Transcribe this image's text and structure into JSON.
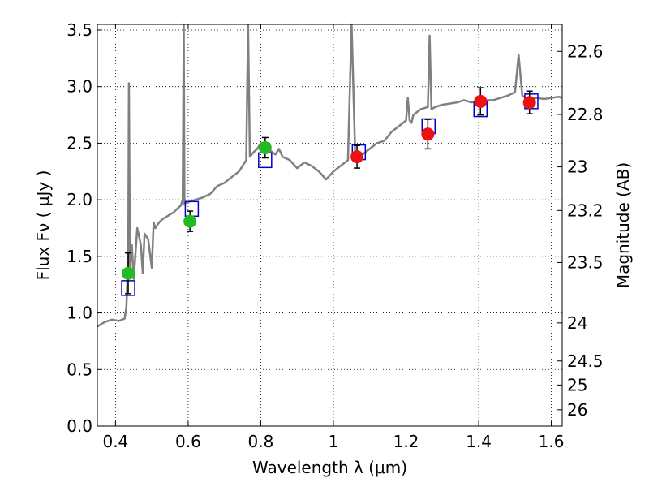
{
  "chart_data": {
    "type": "scatter",
    "xlabel": "Wavelength  λ (μm)",
    "ylabel": "Flux  Fν  ( μJy )",
    "ylabel_right": "Magnitude (AB)",
    "xlim": [
      0.35,
      1.63
    ],
    "ylim": [
      0.0,
      3.55
    ],
    "grid": true,
    "x_ticks": [
      {
        "value": 0.4,
        "label": "0.4"
      },
      {
        "value": 0.6,
        "label": "0.6"
      },
      {
        "value": 0.8,
        "label": "0.8"
      },
      {
        "value": 1.0,
        "label": "1"
      },
      {
        "value": 1.2,
        "label": "1.2"
      },
      {
        "value": 1.4,
        "label": "1.4"
      },
      {
        "value": 1.6,
        "label": "1.6"
      }
    ],
    "y_ticks": [
      {
        "value": 0.0,
        "label": "0.0"
      },
      {
        "value": 0.5,
        "label": "0.5"
      },
      {
        "value": 1.0,
        "label": "1.0"
      },
      {
        "value": 1.5,
        "label": "1.5"
      },
      {
        "value": 2.0,
        "label": "2.0"
      },
      {
        "value": 2.5,
        "label": "2.5"
      },
      {
        "value": 3.0,
        "label": "3.0"
      },
      {
        "value": 3.5,
        "label": "3.5"
      }
    ],
    "right_ticks": [
      {
        "value": 22.6,
        "label": "22.6"
      },
      {
        "value": 22.8,
        "label": "22.8"
      },
      {
        "value": 23.0,
        "label": "23"
      },
      {
        "value": 23.2,
        "label": "23.2"
      },
      {
        "value": 23.5,
        "label": "23.5"
      },
      {
        "value": 24.0,
        "label": "24"
      },
      {
        "value": 24.5,
        "label": "24.5"
      },
      {
        "value": 25.0,
        "label": "25"
      },
      {
        "value": 26.0,
        "label": "26"
      }
    ],
    "colors": {
      "spectrum": "#808080",
      "model": "#0000cc",
      "optical": "#22bb22",
      "nir": "#ee1111",
      "errorbar": "#000000"
    },
    "spectrum": {
      "x": [
        0.35,
        0.37,
        0.39,
        0.41,
        0.425,
        0.43,
        0.435,
        0.437,
        0.44,
        0.445,
        0.45,
        0.46,
        0.47,
        0.475,
        0.48,
        0.49,
        0.5,
        0.505,
        0.51,
        0.52,
        0.53,
        0.54,
        0.55,
        0.56,
        0.57,
        0.58,
        0.585,
        0.588,
        0.59,
        0.595,
        0.6,
        0.62,
        0.64,
        0.66,
        0.68,
        0.7,
        0.72,
        0.74,
        0.76,
        0.765,
        0.77,
        0.78,
        0.79,
        0.8,
        0.82,
        0.84,
        0.85,
        0.86,
        0.88,
        0.9,
        0.92,
        0.94,
        0.96,
        0.98,
        1.0,
        1.02,
        1.04,
        1.05,
        1.06,
        1.07,
        1.08,
        1.1,
        1.12,
        1.14,
        1.16,
        1.18,
        1.2,
        1.205,
        1.21,
        1.215,
        1.22,
        1.24,
        1.26,
        1.265,
        1.27,
        1.28,
        1.3,
        1.32,
        1.34,
        1.36,
        1.38,
        1.4,
        1.42,
        1.44,
        1.46,
        1.48,
        1.5,
        1.51,
        1.52,
        1.54,
        1.56,
        1.58,
        1.6,
        1.62,
        1.63
      ],
      "y": [
        0.88,
        0.92,
        0.94,
        0.93,
        0.95,
        1.05,
        1.5,
        3.03,
        1.4,
        1.6,
        1.3,
        1.75,
        1.6,
        1.35,
        1.7,
        1.65,
        1.4,
        1.8,
        1.75,
        1.8,
        1.83,
        1.85,
        1.87,
        1.89,
        1.92,
        1.95,
        2.0,
        3.55,
        1.96,
        1.98,
        1.98,
        2.0,
        2.02,
        2.05,
        2.12,
        2.15,
        2.2,
        2.25,
        2.35,
        3.55,
        2.38,
        2.42,
        2.45,
        2.5,
        2.45,
        2.4,
        2.45,
        2.38,
        2.35,
        2.28,
        2.33,
        2.3,
        2.25,
        2.18,
        2.25,
        2.3,
        2.35,
        3.55,
        2.4,
        2.38,
        2.4,
        2.45,
        2.5,
        2.52,
        2.6,
        2.65,
        2.7,
        2.9,
        2.7,
        2.68,
        2.75,
        2.8,
        2.82,
        3.45,
        2.8,
        2.82,
        2.84,
        2.85,
        2.86,
        2.88,
        2.86,
        2.87,
        2.88,
        2.88,
        2.9,
        2.92,
        2.95,
        3.28,
        2.92,
        2.88,
        2.9,
        2.89,
        2.9,
        2.91,
        2.9
      ]
    },
    "model_points": {
      "x": [
        0.435,
        0.61,
        0.812,
        1.07,
        1.262,
        1.405,
        1.545
      ],
      "y": [
        1.22,
        1.92,
        2.35,
        2.42,
        2.65,
        2.8,
        2.87
      ]
    },
    "observed_optical": {
      "x": [
        0.435,
        0.605,
        0.812
      ],
      "y": [
        1.35,
        1.81,
        2.46
      ],
      "err": [
        0.18,
        0.09,
        0.09
      ]
    },
    "observed_nir": {
      "x": [
        1.065,
        1.26,
        1.405,
        1.54
      ],
      "y": [
        2.38,
        2.58,
        2.87,
        2.86
      ],
      "err": [
        0.1,
        0.13,
        0.12,
        0.1
      ]
    }
  }
}
